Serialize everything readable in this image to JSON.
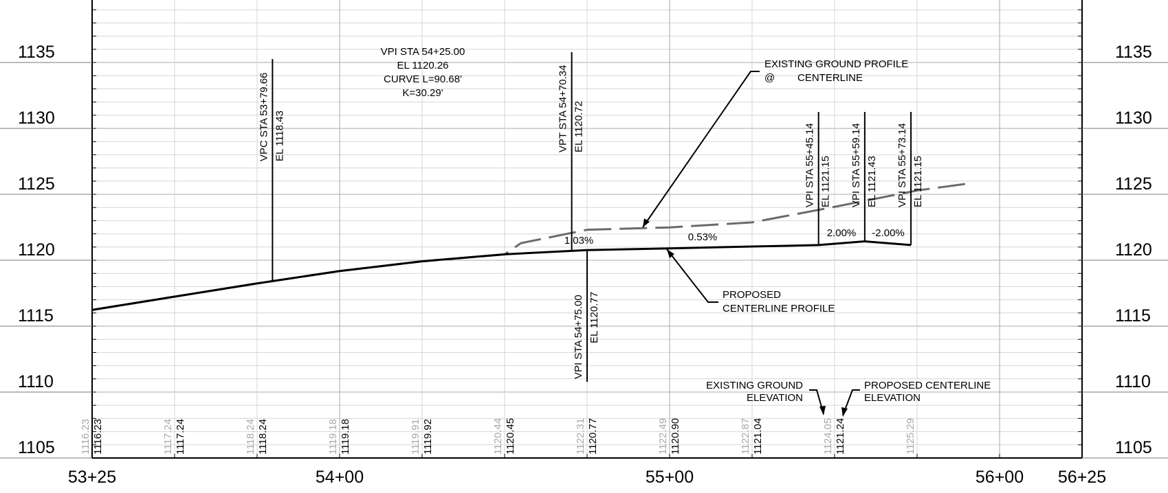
{
  "elevation_axis": {
    "labels": [
      "1135",
      "1130",
      "1125",
      "1120",
      "1115",
      "1110",
      "1105"
    ],
    "values": [
      1135,
      1130,
      1125,
      1120,
      1115,
      1110,
      1105
    ]
  },
  "station_axis": {
    "labels": [
      "53+25",
      "54+00",
      "55+00",
      "56+00",
      "56+25"
    ],
    "values": [
      5325,
      5400,
      5500,
      5600,
      5625
    ]
  },
  "bottom_elevations": [
    {
      "station": 5325,
      "existing": "1116.23",
      "proposed": "1116.23"
    },
    {
      "station": 5350,
      "existing": "1117.24",
      "proposed": "1117.24"
    },
    {
      "station": 5375,
      "existing": "1118.24",
      "proposed": "1118.24"
    },
    {
      "station": 5400,
      "existing": "1119.18",
      "proposed": "1119.18"
    },
    {
      "station": 5425,
      "existing": "1119.91",
      "proposed": "1119.92"
    },
    {
      "station": 5450,
      "existing": "1120.44",
      "proposed": "1120.45"
    },
    {
      "station": 5475,
      "existing": "1122.31",
      "proposed": "1120.77"
    },
    {
      "station": 5500,
      "existing": "1122.49",
      "proposed": "1120.90"
    },
    {
      "station": 5525,
      "existing": "1122.87",
      "proposed": "1121.04"
    },
    {
      "station": 5550,
      "existing": "1124.05",
      "proposed": "1121.24"
    },
    {
      "station": 5575,
      "existing": "1125.29",
      "proposed": ""
    }
  ],
  "annotations": {
    "vpi_curve": [
      "VPI STA 54+25.00",
      "EL 1120.26",
      "CURVE L=90.68'",
      "K=30.29'"
    ],
    "vpc": {
      "line1": "VPC STA 53+79.66",
      "line2": "EL 1118.43"
    },
    "vpt": {
      "line1": "VPT STA 54+70.34",
      "line2": "EL 1120.72"
    },
    "vpi_54_75": {
      "line1": "VPI STA 54+75.00",
      "line2": "EL 1120.77"
    },
    "vpi_55_45": {
      "line1": "VPI STA 55+45.14",
      "line2": "EL 1121.15"
    },
    "vpi_55_59": {
      "line1": "VPI STA 55+59.14",
      "line2": "EL 1121.43"
    },
    "vpi_55_73": {
      "line1": "VPI STA 55+73.14",
      "line2": "EL 1121.15"
    },
    "grade_1": "1.03%",
    "grade_2": "0.53%",
    "grade_3": "2.00%",
    "grade_4": "-2.00%",
    "existing_ground_profile": [
      "EXISTING GROUND PROFILE",
      "@",
      "CENTERLINE"
    ],
    "proposed_profile": [
      "PROPOSED",
      "CENTERLINE PROFILE"
    ],
    "existing_ground_elev": [
      "EXISTING GROUND",
      "ELEVATION"
    ],
    "proposed_centerline_elev": [
      "PROPOSED CENTERLINE",
      "ELEVATION"
    ]
  },
  "proposed_profile_points": [
    [
      5325,
      1116.23
    ],
    [
      5350,
      1117.24
    ],
    [
      5375,
      1118.24
    ],
    [
      5400,
      1119.18
    ],
    [
      5425,
      1119.92
    ],
    [
      5450,
      1120.45
    ],
    [
      5475,
      1120.77
    ],
    [
      5500,
      1120.9
    ],
    [
      5525,
      1121.04
    ],
    [
      5545.14,
      1121.15
    ],
    [
      5559.14,
      1121.43
    ],
    [
      5573.14,
      1121.15
    ]
  ],
  "existing_profile_points": [
    [
      5325,
      1116.23
    ],
    [
      5350,
      1117.24
    ],
    [
      5375,
      1118.24
    ],
    [
      5400,
      1119.18
    ],
    [
      5425,
      1119.91
    ],
    [
      5450,
      1120.44
    ],
    [
      5455,
      1121.3
    ],
    [
      5475,
      1122.31
    ],
    [
      5500,
      1122.49
    ],
    [
      5525,
      1122.87
    ],
    [
      5550,
      1124.05
    ],
    [
      5575,
      1125.29
    ],
    [
      5590,
      1125.8
    ]
  ],
  "colors": {
    "grid_minor": "#d6d6d6",
    "grid_major": "#aaaaaa",
    "line": "#000000",
    "existing": "#6a6a6a",
    "faded_text": "#a8a8a8"
  }
}
